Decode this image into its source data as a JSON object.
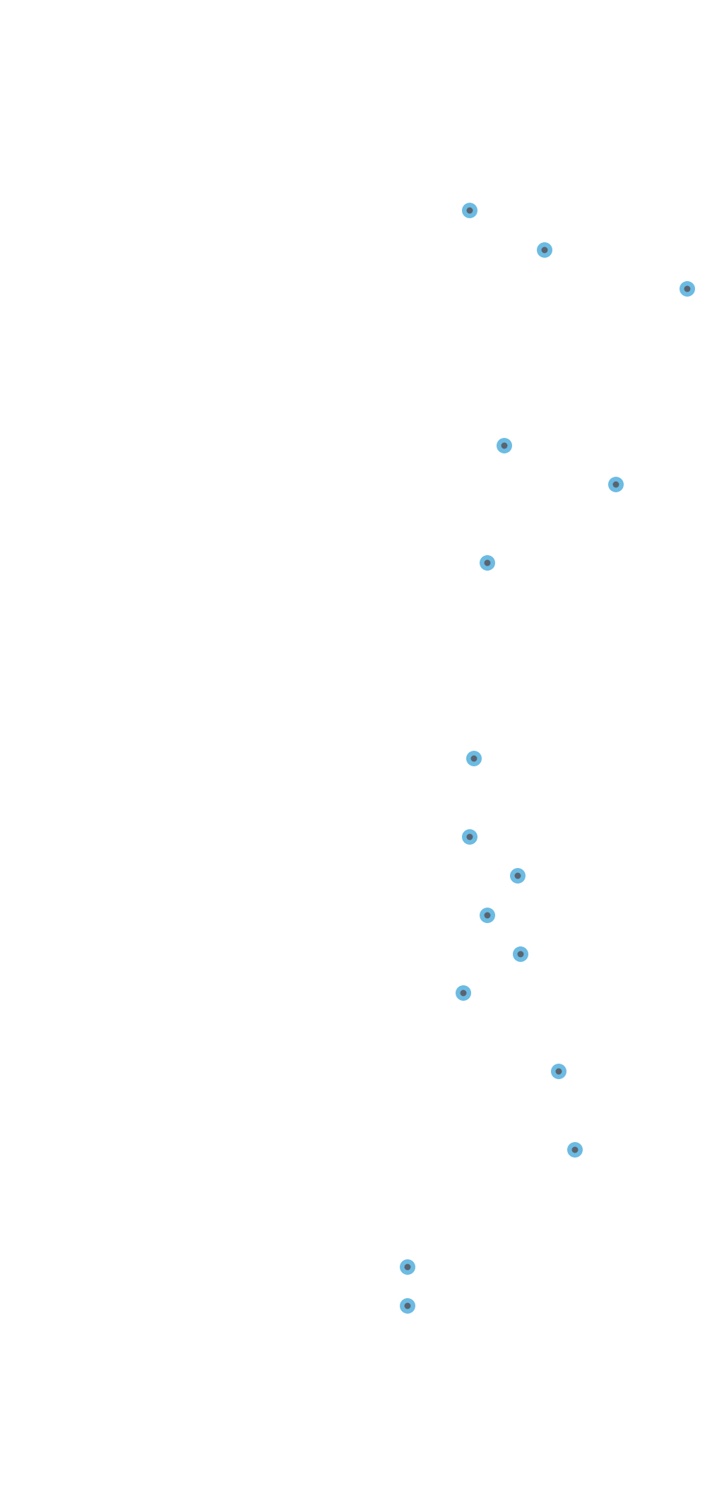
{
  "markers": [
    {
      "id": 1
    },
    {
      "id": 2
    },
    {
      "id": 3
    },
    {
      "id": 4
    },
    {
      "id": 5
    },
    {
      "id": 6
    },
    {
      "id": 7
    },
    {
      "id": 8
    },
    {
      "id": 9
    },
    {
      "id": 10
    },
    {
      "id": 11
    },
    {
      "id": 12
    },
    {
      "id": 13
    },
    {
      "id": 14
    },
    {
      "id": 15
    },
    {
      "id": 16
    }
  ],
  "colors": {
    "background": "#ffffff",
    "marker_ring": "#6cbbe3",
    "marker_core": "#5a6470"
  },
  "icons": {
    "marker": "dot-marker-icon"
  }
}
